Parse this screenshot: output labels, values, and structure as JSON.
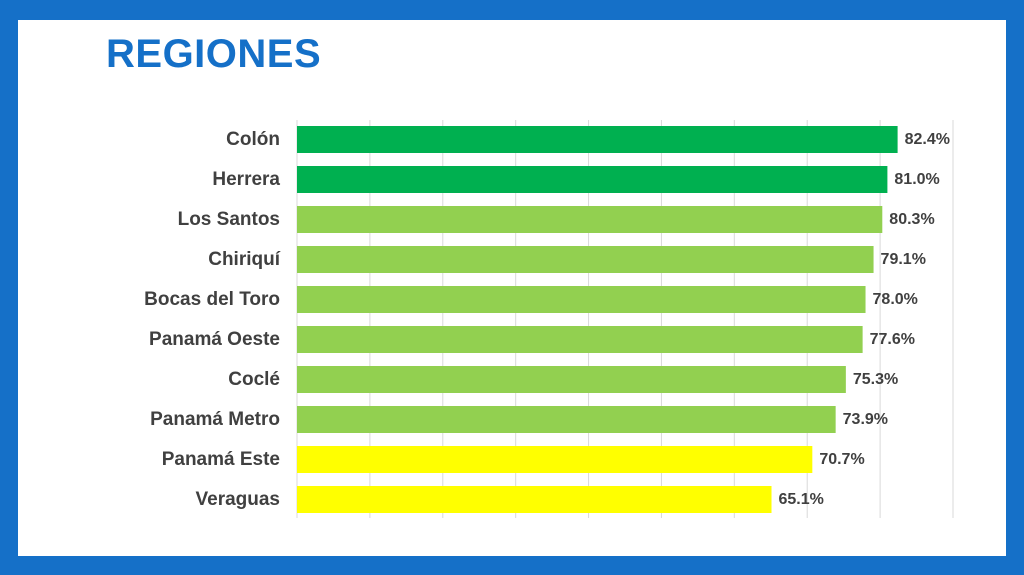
{
  "title": "REGIONES",
  "colors": {
    "frame": "#1570c8",
    "title": "#1570c8",
    "dark_green": "#00b050",
    "light_green": "#92d050",
    "yellow": "#ffff00"
  },
  "chart_data": {
    "type": "bar",
    "orientation": "horizontal",
    "title": "REGIONES",
    "xlabel": "",
    "ylabel": "",
    "xlim": [
      0,
      90
    ],
    "grid": true,
    "value_format": "percent-1-decimal",
    "categories": [
      "Colón",
      "Herrera",
      "Los Santos",
      "Chiriquí",
      "Bocas del Toro",
      "Panamá Oeste",
      "Coclé",
      "Panamá Metro",
      "Panamá Este",
      "Veraguas"
    ],
    "values": [
      82.4,
      81.0,
      80.3,
      79.1,
      78.0,
      77.6,
      75.3,
      73.9,
      70.7,
      65.1
    ],
    "value_labels": [
      "82.4%",
      "81.0%",
      "80.3%",
      "79.1%",
      "78.0%",
      "77.6%",
      "75.3%",
      "73.9%",
      "70.7%",
      "65.1%"
    ],
    "bar_colors": [
      "#00b050",
      "#00b050",
      "#92d050",
      "#92d050",
      "#92d050",
      "#92d050",
      "#92d050",
      "#92d050",
      "#ffff00",
      "#ffff00"
    ]
  }
}
